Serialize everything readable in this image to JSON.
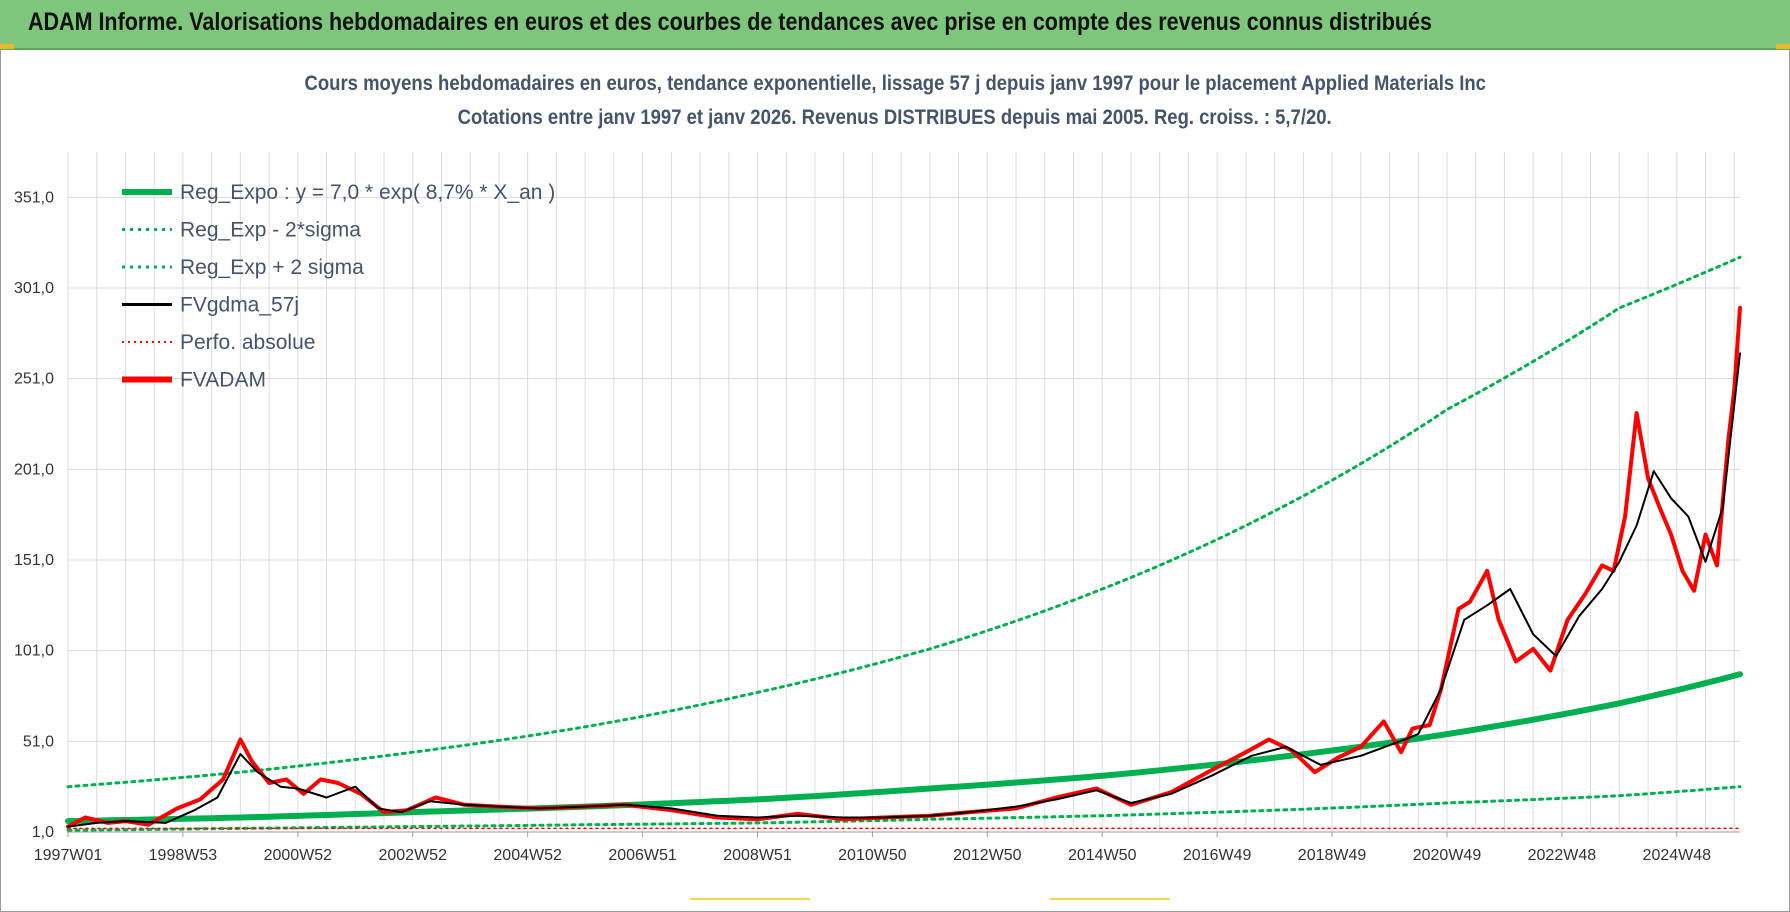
{
  "banner": {
    "title": "ADAM Informe. Valorisations hebdomadaires en euros et des courbes de tendances avec prise en compte des revenus connus distribués"
  },
  "colors": {
    "banner_bg": "#7dc67b",
    "reg_green": "#00b050",
    "fv_black": "#000000",
    "adam_red": "#ff0000",
    "title_color": "#44546a"
  },
  "chart_data": {
    "type": "line",
    "title_line1": "Cours moyens hebdomadaires en euros, tendance exponentielle, lissage 57 j depuis janv 1997 pour le placement Applied Materials Inc",
    "title_line2": "Cotations entre janv 1997 et janv 2026. Revenus DISTRIBUES depuis mai 2005. Reg. croiss. : 5,7/20.",
    "xlim": [
      1997.0,
      2026.1
    ],
    "ylim": [
      1.0,
      376.0
    ],
    "y_ticks": [
      1.0,
      51.0,
      101.0,
      151.0,
      201.0,
      251.0,
      301.0,
      351.0
    ],
    "y_tick_labels": [
      "1,0",
      "51,0",
      "101,0",
      "151,0",
      "201,0",
      "251,0",
      "301,0",
      "351,0"
    ],
    "x_ticks": [
      1997.0,
      1999.0,
      2001.0,
      2003.0,
      2005.0,
      2007.0,
      2009.0,
      2011.0,
      2013.0,
      2015.0,
      2017.0,
      2019.0,
      2021.0,
      2023.0,
      2025.0
    ],
    "x_tick_labels": [
      "1997W01",
      "1998W53",
      "2000W52",
      "2002W52",
      "2004W52",
      "2006W51",
      "2008W51",
      "2010W50",
      "2012W50",
      "2014W50",
      "2016W49",
      "2018W49",
      "2020W49",
      "2022W48",
      "2024W48"
    ],
    "legend": [
      {
        "key": "reg",
        "label": "Reg_Expo : y = 7,0 * exp( 8,7% *  X_an )",
        "style": "solid-thick",
        "color": "#00b050"
      },
      {
        "key": "minus",
        "label": "Reg_Exp - 2*sigma",
        "style": "dotted",
        "color": "#00b050"
      },
      {
        "key": "plus",
        "label": "Reg_Exp + 2 sigma",
        "style": "dotted",
        "color": "#00b050"
      },
      {
        "key": "fv",
        "label": "FVgdma_57j",
        "style": "solid",
        "color": "#000000"
      },
      {
        "key": "perfo",
        "label": "Perfo. absolue",
        "style": "dotted-thin",
        "color": "#ff0000"
      },
      {
        "key": "adam",
        "label": "FVADAM",
        "style": "solid-thick",
        "color": "#ff0000"
      }
    ],
    "series": [
      {
        "name": "Reg_Expo",
        "x": [
          1997,
          2000,
          2003,
          2006,
          2009,
          2012,
          2015,
          2018,
          2021,
          2024,
          2026.1
        ],
        "values": [
          7,
          9,
          12,
          15,
          19,
          25,
          32,
          42,
          55,
          72,
          88
        ]
      },
      {
        "name": "Reg_Exp - 2*sigma",
        "x": [
          1997,
          2000,
          2003,
          2006,
          2009,
          2012,
          2015,
          2018,
          2021,
          2024,
          2026.1
        ],
        "values": [
          2,
          3,
          4,
          5,
          6,
          8,
          10,
          13,
          17,
          21,
          26
        ]
      },
      {
        "name": "Reg_Exp + 2 sigma",
        "x": [
          1997,
          2000,
          2003,
          2006,
          2009,
          2012,
          2015,
          2018,
          2021,
          2024,
          2026.1
        ],
        "values": [
          26,
          34,
          45,
          59,
          78,
          102,
          135,
          178,
          234,
          290,
          318
        ]
      },
      {
        "name": "FVgdma_57j",
        "x": [
          1997,
          1997.5,
          1998,
          1998.7,
          1999.2,
          1999.6,
          2000,
          2000.3,
          2000.7,
          2001,
          2001.5,
          2002,
          2002.4,
          2002.8,
          2003.3,
          2003.9,
          2004.5,
          2005.2,
          2006,
          2006.7,
          2007.5,
          2008.3,
          2009,
          2009.7,
          2010.5,
          2011.2,
          2012,
          2012.7,
          2013.5,
          2014.2,
          2014.9,
          2015.5,
          2016.2,
          2016.9,
          2017.6,
          2018.2,
          2018.8,
          2019.5,
          2020.1,
          2020.5,
          2020.9,
          2021.3,
          2021.7,
          2022.1,
          2022.5,
          2022.9,
          2023.3,
          2023.7,
          2024.0,
          2024.3,
          2024.6,
          2024.9,
          2025.2,
          2025.5,
          2025.8,
          2026.1
        ],
        "values": [
          4,
          6,
          7,
          6,
          13,
          20,
          44,
          34,
          26,
          25,
          20,
          26,
          14,
          12,
          18,
          16,
          15,
          14,
          15,
          16,
          14,
          10,
          9,
          10,
          9,
          9,
          10,
          12,
          15,
          19,
          24,
          17,
          22,
          32,
          43,
          48,
          38,
          43,
          50,
          55,
          80,
          118,
          126,
          135,
          110,
          98,
          120,
          135,
          150,
          170,
          200,
          185,
          175,
          150,
          180,
          265
        ]
      },
      {
        "name": "FVADAM",
        "x": [
          1997,
          1997.3,
          1997.7,
          1998,
          1998.4,
          1998.9,
          1999.3,
          1999.7,
          2000,
          2000.2,
          2000.5,
          2000.8,
          2001.1,
          2001.4,
          2001.7,
          2002.1,
          2002.5,
          2002.9,
          2003.4,
          2003.9,
          2004.5,
          2005.2,
          2006,
          2006.7,
          2007.5,
          2008.3,
          2009,
          2009.7,
          2010.5,
          2011.2,
          2012,
          2012.7,
          2013.5,
          2014.2,
          2014.9,
          2015.5,
          2016.2,
          2016.9,
          2017.5,
          2017.9,
          2018.3,
          2018.7,
          2019.1,
          2019.5,
          2019.9,
          2020.2,
          2020.4,
          2020.7,
          2020.9,
          2021.2,
          2021.4,
          2021.7,
          2021.9,
          2022.2,
          2022.5,
          2022.8,
          2023.1,
          2023.4,
          2023.7,
          2023.9,
          2024.1,
          2024.3,
          2024.5,
          2024.7,
          2024.9,
          2025.1,
          2025.3,
          2025.5,
          2025.7,
          2025.9,
          2026.0,
          2026.1
        ],
        "values": [
          4,
          9,
          6,
          7,
          5,
          14,
          19,
          30,
          52,
          40,
          28,
          30,
          22,
          30,
          28,
          22,
          12,
          13,
          20,
          16,
          15,
          14,
          15,
          16,
          13,
          9,
          8,
          11,
          8,
          9,
          10,
          12,
          14,
          20,
          25,
          16,
          23,
          35,
          45,
          52,
          46,
          34,
          42,
          48,
          62,
          45,
          58,
          60,
          80,
          124,
          128,
          145,
          118,
          95,
          102,
          90,
          118,
          132,
          148,
          145,
          175,
          232,
          196,
          180,
          165,
          145,
          134,
          165,
          148,
          218,
          245,
          290
        ]
      },
      {
        "name": "Perfo. absolue",
        "x": [
          1997,
          2026.1
        ],
        "values": [
          3,
          3
        ]
      }
    ]
  }
}
